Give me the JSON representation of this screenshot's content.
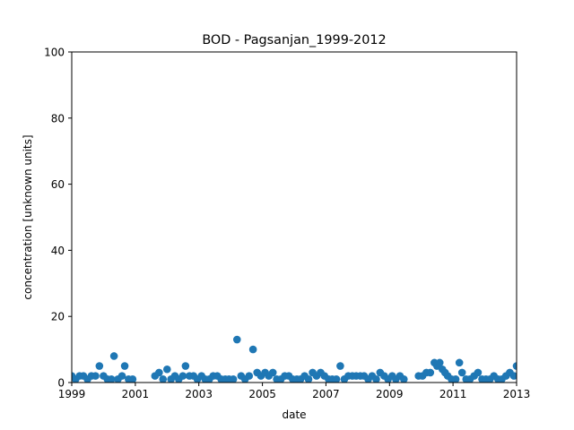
{
  "chart_data": {
    "type": "scatter",
    "title": "BOD - Pagsanjan_1999-2012",
    "xlabel": "date",
    "ylabel": "concentration [unknown units]",
    "xlim": [
      "1999-01-01",
      "2013-01-01"
    ],
    "ylim": [
      0,
      100
    ],
    "xticks": [
      "1999",
      "2001",
      "2003",
      "2005",
      "2007",
      "2009",
      "2011",
      "2013"
    ],
    "yticks": [
      0,
      20,
      40,
      60,
      80,
      100
    ],
    "grid": false,
    "color": "#1f77b4",
    "series": [
      {
        "points": [
          {
            "x": "1999-01-01",
            "y": 2
          },
          {
            "x": "1999-02-15",
            "y": 1
          },
          {
            "x": "1999-04-01",
            "y": 2
          },
          {
            "x": "1999-05-15",
            "y": 2
          },
          {
            "x": "1999-07-01",
            "y": 1
          },
          {
            "x": "1999-08-15",
            "y": 2
          },
          {
            "x": "1999-10-01",
            "y": 2
          },
          {
            "x": "1999-11-15",
            "y": 5
          },
          {
            "x": "2000-01-01",
            "y": 2
          },
          {
            "x": "2000-02-15",
            "y": 1
          },
          {
            "x": "2000-04-01",
            "y": 1
          },
          {
            "x": "2000-05-01",
            "y": 8
          },
          {
            "x": "2000-06-15",
            "y": 1
          },
          {
            "x": "2000-08-01",
            "y": 2
          },
          {
            "x": "2000-09-01",
            "y": 5
          },
          {
            "x": "2000-10-15",
            "y": 1
          },
          {
            "x": "2000-12-01",
            "y": 1
          },
          {
            "x": "2001-08-15",
            "y": 2
          },
          {
            "x": "2001-10-01",
            "y": 3
          },
          {
            "x": "2001-11-15",
            "y": 1
          },
          {
            "x": "2002-01-01",
            "y": 4
          },
          {
            "x": "2002-02-15",
            "y": 1
          },
          {
            "x": "2002-04-01",
            "y": 2
          },
          {
            "x": "2002-05-15",
            "y": 1
          },
          {
            "x": "2002-07-01",
            "y": 2
          },
          {
            "x": "2002-08-01",
            "y": 5
          },
          {
            "x": "2002-09-15",
            "y": 2
          },
          {
            "x": "2002-11-01",
            "y": 2
          },
          {
            "x": "2002-12-15",
            "y": 1
          },
          {
            "x": "2003-02-01",
            "y": 2
          },
          {
            "x": "2003-03-15",
            "y": 1
          },
          {
            "x": "2003-05-01",
            "y": 1
          },
          {
            "x": "2003-06-15",
            "y": 2
          },
          {
            "x": "2003-08-01",
            "y": 2
          },
          {
            "x": "2003-09-15",
            "y": 1
          },
          {
            "x": "2003-11-01",
            "y": 1
          },
          {
            "x": "2003-12-15",
            "y": 1
          },
          {
            "x": "2004-02-01",
            "y": 1
          },
          {
            "x": "2004-03-15",
            "y": 13
          },
          {
            "x": "2004-05-01",
            "y": 2
          },
          {
            "x": "2004-06-15",
            "y": 1
          },
          {
            "x": "2004-08-01",
            "y": 2
          },
          {
            "x": "2004-09-15",
            "y": 10
          },
          {
            "x": "2004-11-01",
            "y": 3
          },
          {
            "x": "2004-12-15",
            "y": 2
          },
          {
            "x": "2005-02-01",
            "y": 3
          },
          {
            "x": "2005-03-15",
            "y": 2
          },
          {
            "x": "2005-05-01",
            "y": 3
          },
          {
            "x": "2005-06-15",
            "y": 1
          },
          {
            "x": "2005-08-01",
            "y": 1
          },
          {
            "x": "2005-09-15",
            "y": 2
          },
          {
            "x": "2005-11-01",
            "y": 2
          },
          {
            "x": "2005-12-15",
            "y": 1
          },
          {
            "x": "2006-02-01",
            "y": 1
          },
          {
            "x": "2006-03-15",
            "y": 1
          },
          {
            "x": "2006-05-01",
            "y": 2
          },
          {
            "x": "2006-06-15",
            "y": 1
          },
          {
            "x": "2006-08-01",
            "y": 3
          },
          {
            "x": "2006-09-15",
            "y": 2
          },
          {
            "x": "2006-11-01",
            "y": 3
          },
          {
            "x": "2006-12-15",
            "y": 2
          },
          {
            "x": "2007-02-01",
            "y": 1
          },
          {
            "x": "2007-03-15",
            "y": 1
          },
          {
            "x": "2007-05-01",
            "y": 1
          },
          {
            "x": "2007-06-15",
            "y": 5
          },
          {
            "x": "2007-08-01",
            "y": 1
          },
          {
            "x": "2007-09-15",
            "y": 2
          },
          {
            "x": "2007-11-01",
            "y": 2
          },
          {
            "x": "2007-12-15",
            "y": 2
          },
          {
            "x": "2008-02-01",
            "y": 2
          },
          {
            "x": "2008-03-15",
            "y": 2
          },
          {
            "x": "2008-05-01",
            "y": 1
          },
          {
            "x": "2008-06-15",
            "y": 2
          },
          {
            "x": "2008-08-01",
            "y": 1
          },
          {
            "x": "2008-09-15",
            "y": 3
          },
          {
            "x": "2008-11-01",
            "y": 2
          },
          {
            "x": "2008-12-15",
            "y": 1
          },
          {
            "x": "2009-02-01",
            "y": 2
          },
          {
            "x": "2009-03-15",
            "y": 1
          },
          {
            "x": "2009-05-01",
            "y": 2
          },
          {
            "x": "2009-06-15",
            "y": 1
          },
          {
            "x": "2009-12-01",
            "y": 2
          },
          {
            "x": "2010-01-15",
            "y": 2
          },
          {
            "x": "2010-03-01",
            "y": 3
          },
          {
            "x": "2010-04-15",
            "y": 3
          },
          {
            "x": "2010-06-01",
            "y": 6
          },
          {
            "x": "2010-07-01",
            "y": 5
          },
          {
            "x": "2010-08-01",
            "y": 6
          },
          {
            "x": "2010-09-01",
            "y": 4
          },
          {
            "x": "2010-10-01",
            "y": 3
          },
          {
            "x": "2010-11-01",
            "y": 2
          },
          {
            "x": "2010-12-15",
            "y": 1
          },
          {
            "x": "2011-02-01",
            "y": 1
          },
          {
            "x": "2011-03-15",
            "y": 6
          },
          {
            "x": "2011-04-15",
            "y": 3
          },
          {
            "x": "2011-06-01",
            "y": 1
          },
          {
            "x": "2011-07-15",
            "y": 1
          },
          {
            "x": "2011-09-01",
            "y": 2
          },
          {
            "x": "2011-10-15",
            "y": 3
          },
          {
            "x": "2011-12-01",
            "y": 1
          },
          {
            "x": "2012-01-15",
            "y": 1
          },
          {
            "x": "2012-03-01",
            "y": 1
          },
          {
            "x": "2012-04-15",
            "y": 2
          },
          {
            "x": "2012-06-01",
            "y": 1
          },
          {
            "x": "2012-07-15",
            "y": 1
          },
          {
            "x": "2012-09-01",
            "y": 2
          },
          {
            "x": "2012-10-15",
            "y": 3
          },
          {
            "x": "2012-12-01",
            "y": 2
          },
          {
            "x": "2013-01-01",
            "y": 5
          }
        ]
      }
    ]
  }
}
